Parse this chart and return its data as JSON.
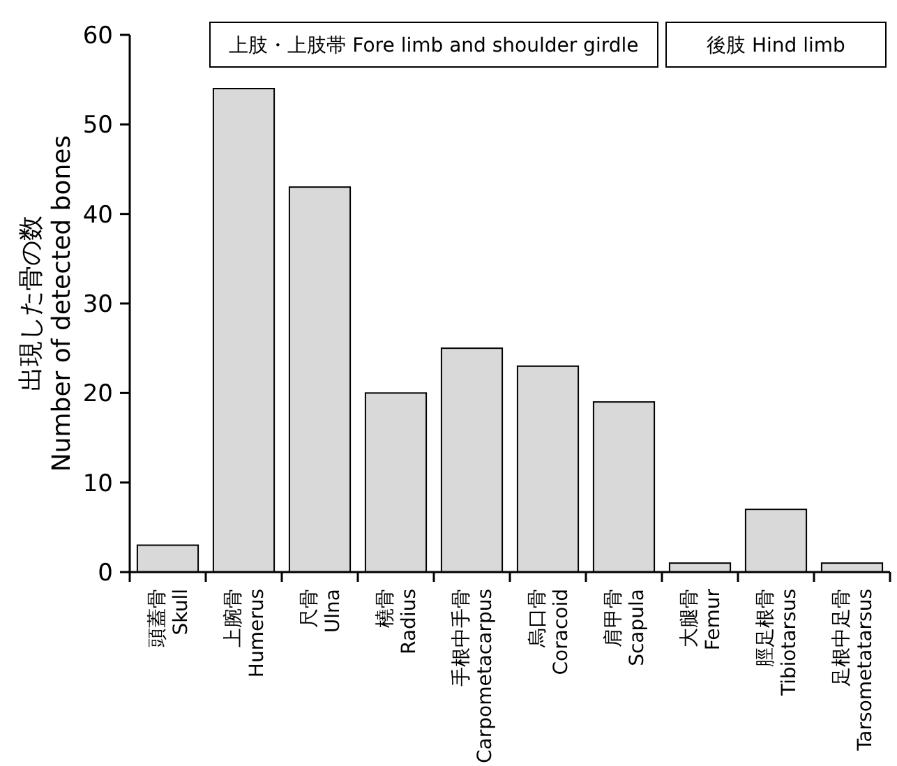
{
  "chart_data": {
    "type": "bar",
    "ylabel": "出現した骨の数\nNumber of detected bones",
    "categories": [
      "頭蓋骨\nSkull",
      "上腕骨\nHumerus",
      "尺骨\nUlna",
      "橈骨\nRadius",
      "手根中手骨\nCarpometacarpus",
      "烏口骨\nCoracoid",
      "肩甲骨\nScapula",
      "大腿骨\nFemur",
      "脛足根骨\nTibiotarsus",
      "足根中足骨\nTarsometatarsus"
    ],
    "values": [
      3,
      54,
      43,
      20,
      25,
      23,
      19,
      1,
      7,
      1
    ],
    "color": "#d9d9d9",
    "ylim": [
      0,
      60
    ],
    "yticks": [
      0,
      10,
      20,
      30,
      40,
      50,
      60
    ],
    "grid": false,
    "annotations": [
      "上肢・上肢帯  Fore limb and shoulder girdle",
      "後肢 Hind limb"
    ]
  }
}
